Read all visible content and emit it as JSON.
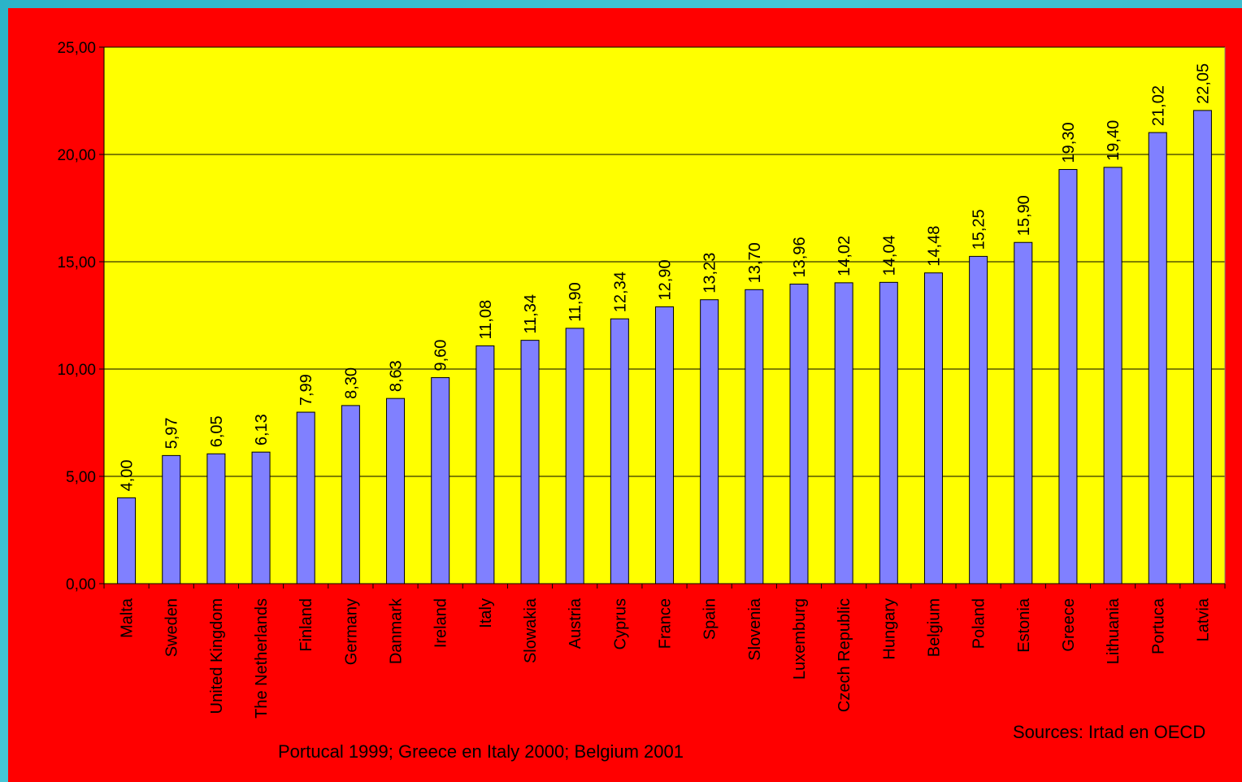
{
  "chart_data": {
    "type": "bar",
    "categories": [
      "Malta",
      "Sweden",
      "United Kingdom",
      "The Netherlands",
      "Finland",
      "Germany",
      "Danmark",
      "Ireland",
      "Italy",
      "Slowakia",
      "Austria",
      "Cyprus",
      "France",
      "Spain",
      "Slovenia",
      "Luxemburg",
      "Czech Republic",
      "Hungary",
      "Belgium",
      "Poland",
      "Estonia",
      "Greece",
      "Lithuania",
      "Portuca",
      "Latvia"
    ],
    "values": [
      4.0,
      5.97,
      6.05,
      6.13,
      7.99,
      8.3,
      8.63,
      9.6,
      11.08,
      11.34,
      11.9,
      12.34,
      12.9,
      13.23,
      13.7,
      13.96,
      14.02,
      14.04,
      14.48,
      15.25,
      15.9,
      19.3,
      19.4,
      21.02,
      22.05
    ],
    "data_labels": [
      "4,00",
      "5,97",
      "6,05",
      "6,13",
      "7,99",
      "8,30",
      "8,63",
      "9,60",
      "11,08",
      "11,34",
      "11,90",
      "12,34",
      "12,90",
      "13,23",
      "13,70",
      "13,96",
      "14,02",
      "14,04",
      "14,48",
      "15,25",
      "15,90",
      "19,30",
      "19,40",
      "21,02",
      "22,05"
    ],
    "ylim": [
      0,
      25
    ],
    "yticks": [
      0,
      5,
      10,
      15,
      20,
      25
    ],
    "ytick_labels": [
      "0,00",
      "5,00",
      "10,00",
      "15,00",
      "20,00",
      "25,00"
    ],
    "grid": true,
    "title": "",
    "xlabel": "",
    "ylabel": "",
    "colors": {
      "bar_fill": "#8080ff",
      "plot_background": "#ffff00",
      "figure_background": "#ff0000",
      "gridline": "#000000"
    }
  },
  "notes": {
    "footnote": "Portucal 1999; Greece en Italy 2000; Belgium 2001",
    "source": "Sources: Irtad en OECD"
  }
}
